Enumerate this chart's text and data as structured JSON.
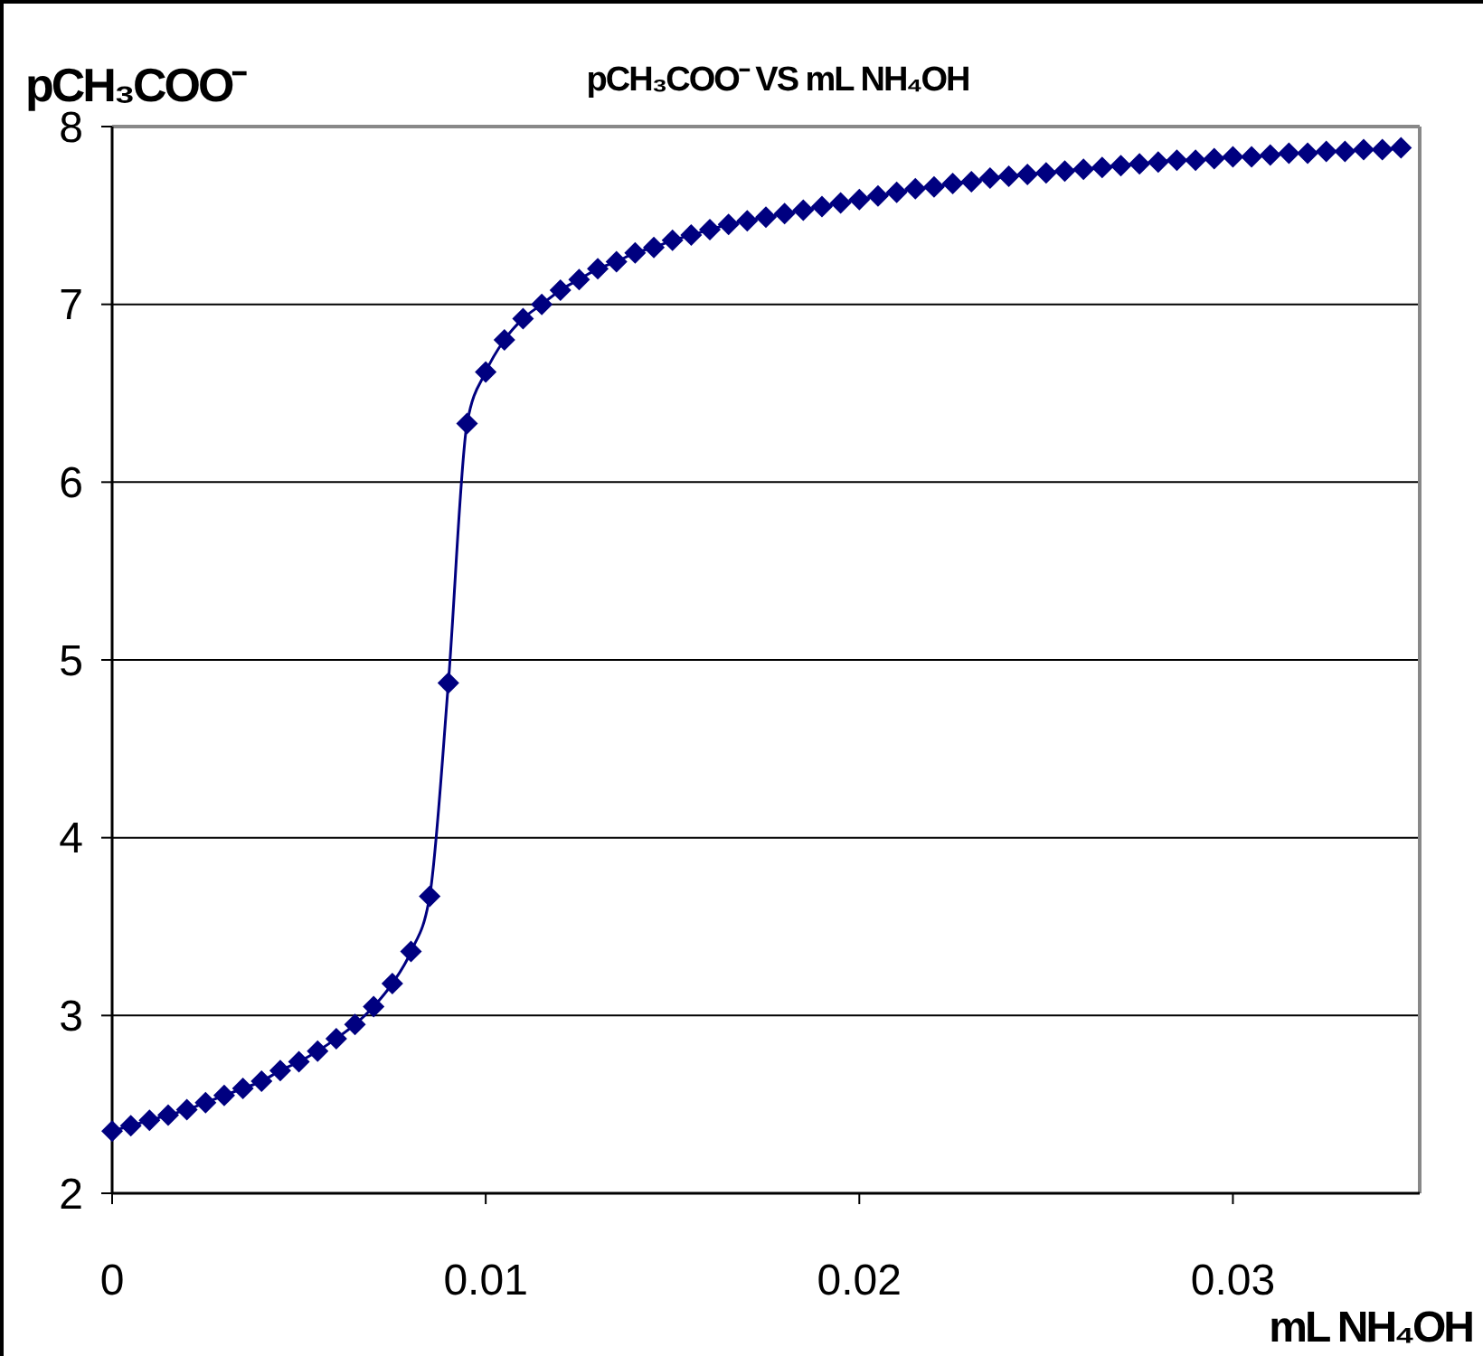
{
  "chart_data": {
    "type": "line",
    "title": "pCH₃COO⁻  VS  mL NH₄OH",
    "xlabel": "mL NH₄OH",
    "ylabel": "pCH₃COO⁻",
    "x": [
      0,
      0.0005,
      0.001,
      0.0015,
      0.002,
      0.0025,
      0.003,
      0.0035,
      0.004,
      0.0045,
      0.005,
      0.0055,
      0.006,
      0.0065,
      0.007,
      0.0075,
      0.008,
      0.0085,
      0.009,
      0.0095,
      0.01,
      0.0105,
      0.011,
      0.0115,
      0.012,
      0.0125,
      0.013,
      0.0135,
      0.014,
      0.0145,
      0.015,
      0.0155,
      0.016,
      0.0165,
      0.017,
      0.0175,
      0.018,
      0.0185,
      0.019,
      0.0195,
      0.02,
      0.0205,
      0.021,
      0.0215,
      0.022,
      0.0225,
      0.023,
      0.0235,
      0.024,
      0.0245,
      0.025,
      0.0255,
      0.026,
      0.0265,
      0.027,
      0.0275,
      0.028,
      0.0285,
      0.029,
      0.0295,
      0.03,
      0.0305,
      0.031,
      0.0315,
      0.032,
      0.0325,
      0.033,
      0.0335,
      0.034,
      0.0345
    ],
    "series": [
      {
        "color": "#000080",
        "values": [
          2.35,
          2.38,
          2.41,
          2.44,
          2.47,
          2.51,
          2.55,
          2.59,
          2.63,
          2.69,
          2.74,
          2.8,
          2.87,
          2.95,
          3.05,
          3.18,
          3.36,
          3.67,
          4.87,
          6.33,
          6.62,
          6.8,
          6.92,
          7.0,
          7.08,
          7.14,
          7.2,
          7.24,
          7.29,
          7.32,
          7.36,
          7.39,
          7.42,
          7.45,
          7.47,
          7.49,
          7.51,
          7.53,
          7.55,
          7.57,
          7.59,
          7.61,
          7.63,
          7.65,
          7.66,
          7.68,
          7.69,
          7.71,
          7.72,
          7.73,
          7.74,
          7.75,
          7.76,
          7.77,
          7.78,
          7.79,
          7.8,
          7.81,
          7.81,
          7.82,
          7.83,
          7.83,
          7.84,
          7.85,
          7.85,
          7.86,
          7.86,
          7.87,
          7.87,
          7.88
        ]
      }
    ],
    "xlim": [
      0,
      0.035
    ],
    "ylim": [
      2,
      8
    ],
    "xticks": [
      0,
      0.01,
      0.02,
      0.03
    ],
    "yticks": [
      2,
      3,
      4,
      5,
      6,
      7,
      8
    ],
    "grid": "y",
    "marker": "diamond",
    "line_style": "solid"
  }
}
